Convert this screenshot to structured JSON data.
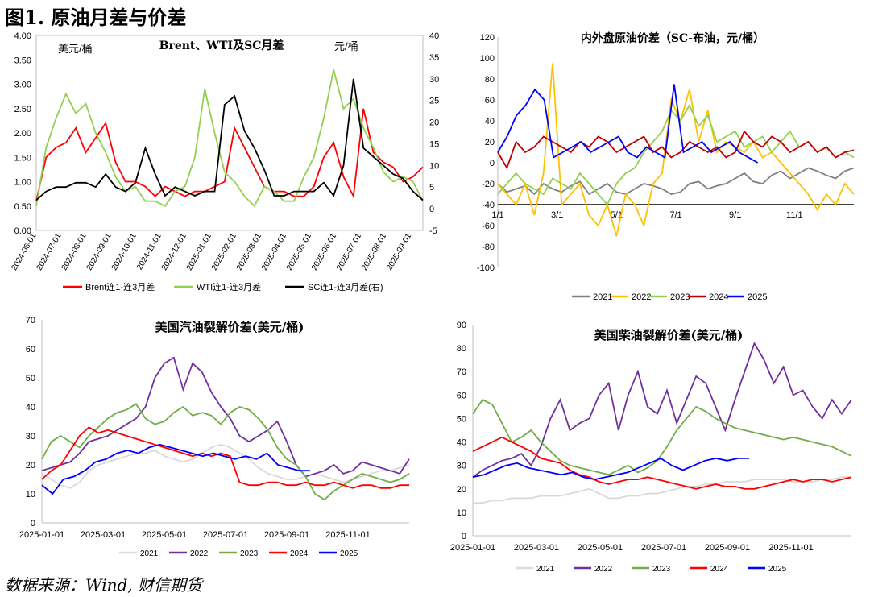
{
  "figure_title": "图1. 原油月差与价差",
  "source": "数据来源：Wind, 财信期货",
  "chart_data": [
    {
      "id": "spread",
      "type": "line",
      "title": "Brent、WTI及SC月差",
      "left_unit": "美元/桶",
      "right_unit": "元/桶",
      "ylim": [
        0,
        4
      ],
      "y_ticks": [
        "0.00",
        "0.50",
        "1.00",
        "1.50",
        "2.00",
        "2.50",
        "3.00",
        "3.50",
        "4.00"
      ],
      "y2lim": [
        -5,
        40
      ],
      "y2_ticks": [
        "-5",
        "0",
        "5",
        "10",
        "15",
        "20",
        "25",
        "30",
        "35",
        "40"
      ],
      "x_ticks": [
        "2024-06-01",
        "2024-07-01",
        "2024-08-01",
        "2024-09-01",
        "2024-10-01",
        "2024-11-01",
        "2024-12-01",
        "2025-01-01",
        "2025-02-01",
        "2025-03-01",
        "2025-04-01",
        "2025-05-01",
        "2025-06-01",
        "2025-07-01",
        "2025-08-01",
        "2025-09-01"
      ],
      "series": [
        {
          "name": "Brent连1-连3月差",
          "color": "#ff0000",
          "axis": "left",
          "values": [
            0.6,
            1.5,
            1.7,
            1.8,
            2.1,
            1.6,
            1.9,
            2.2,
            1.4,
            1.0,
            1.0,
            0.9,
            0.7,
            0.9,
            0.8,
            0.7,
            0.8,
            0.8,
            0.9,
            1.0,
            2.1,
            1.7,
            1.3,
            0.9,
            0.8,
            0.8,
            0.7,
            0.7,
            0.9,
            1.5,
            1.8,
            1.1,
            0.7,
            2.5,
            1.6,
            1.4,
            1.3,
            1.0,
            1.1,
            1.3
          ]
        },
        {
          "name": "WTI连1-连3月差",
          "color": "#92d050",
          "axis": "left",
          "values": [
            0.5,
            1.7,
            2.3,
            2.8,
            2.4,
            2.6,
            2.0,
            1.6,
            1.1,
            0.8,
            0.9,
            0.6,
            0.6,
            0.5,
            0.8,
            0.9,
            1.5,
            2.9,
            2.0,
            1.2,
            1.0,
            0.7,
            0.5,
            0.9,
            0.8,
            0.6,
            0.6,
            1.1,
            1.5,
            2.3,
            3.3,
            2.5,
            2.7,
            2.1,
            1.7,
            1.2,
            1.0,
            1.1,
            1.0,
            0.6
          ]
        },
        {
          "name": "SC连1-连3月差(右)",
          "color": "#000000",
          "axis": "right",
          "values": [
            2,
            4,
            5,
            5,
            6,
            6,
            5,
            8,
            5,
            4,
            6,
            14,
            8,
            3,
            5,
            4,
            3,
            4,
            4,
            24,
            26,
            18,
            14,
            9,
            3,
            3,
            4,
            4,
            4,
            6,
            3,
            10,
            30,
            14,
            12,
            10,
            8,
            7,
            4,
            2
          ]
        }
      ]
    },
    {
      "id": "sc_brent",
      "type": "line",
      "title": "内外盘原油价差（SC-布油，元/桶）",
      "ylim": [
        -100,
        120
      ],
      "y_ticks": [
        "-100",
        "-80",
        "-60",
        "-40",
        "-20",
        "0",
        "20",
        "40",
        "60",
        "80",
        "100",
        "120"
      ],
      "x_ticks": [
        "1/1",
        "3/1",
        "5/1",
        "7/1",
        "9/1",
        "11/1"
      ],
      "series": [
        {
          "name": "2021",
          "color": "#808080",
          "values": [
            -20,
            -28,
            -25,
            -22,
            -30,
            -20,
            -25,
            -28,
            -22,
            -18,
            -30,
            -25,
            -20,
            -28,
            -30,
            -25,
            -20,
            -22,
            -25,
            -30,
            -28,
            -20,
            -18,
            -25,
            -22,
            -20,
            -15,
            -10,
            -18,
            -20,
            -12,
            -8,
            -15,
            -10,
            -5,
            -8,
            -12,
            -15,
            -8,
            -5
          ]
        },
        {
          "name": "2022",
          "color": "#ffc000",
          "values": [
            -20,
            -30,
            -40,
            -20,
            -50,
            -10,
            95,
            -40,
            -30,
            -20,
            -50,
            -60,
            -40,
            -70,
            -30,
            -40,
            -60,
            -20,
            -10,
            60,
            40,
            70,
            20,
            50,
            10,
            20,
            15,
            10,
            20,
            5,
            10,
            0,
            -10,
            -20,
            -30,
            -45,
            -30,
            -40,
            -20,
            -30
          ]
        },
        {
          "name": "2023",
          "color": "#92d050",
          "values": [
            -30,
            -20,
            -10,
            -20,
            -25,
            -30,
            -15,
            -20,
            -25,
            -10,
            -20,
            -30,
            -40,
            -20,
            -10,
            -5,
            10,
            20,
            30,
            50,
            40,
            55,
            35,
            45,
            20,
            25,
            30,
            15,
            20,
            25,
            10,
            20,
            30,
            15,
            20,
            10,
            15,
            5,
            10,
            5
          ]
        },
        {
          "name": "2024",
          "color": "#c00000",
          "values": [
            10,
            -5,
            20,
            10,
            15,
            25,
            20,
            15,
            10,
            20,
            15,
            25,
            20,
            10,
            15,
            20,
            25,
            10,
            15,
            5,
            10,
            20,
            15,
            10,
            15,
            5,
            10,
            30,
            20,
            15,
            25,
            20,
            10,
            15,
            20,
            10,
            15,
            5,
            10,
            12
          ]
        },
        {
          "name": "2025",
          "color": "#0000ff",
          "values": [
            10,
            25,
            45,
            55,
            70,
            60,
            5,
            10,
            15,
            20,
            10,
            15,
            20,
            25,
            10,
            5,
            15,
            10,
            5,
            75,
            10,
            15,
            20,
            10,
            15,
            20,
            10,
            5,
            0
          ]
        }
      ]
    },
    {
      "id": "gasoline",
      "type": "line",
      "title": "美国汽油裂解价差(美元/桶)",
      "ylim": [
        0,
        70
      ],
      "y_ticks": [
        "0",
        "10",
        "20",
        "30",
        "40",
        "50",
        "60",
        "70"
      ],
      "x_ticks": [
        "2025-01-01",
        "2025-03-01",
        "2025-05-01",
        "2025-07-01",
        "2025-09-01",
        "2025-11-01"
      ],
      "series": [
        {
          "name": "2021",
          "color": "#d9d9d9",
          "values": [
            17,
            15,
            13,
            12,
            14,
            18,
            20,
            21,
            22,
            23,
            24,
            24,
            25,
            23,
            22,
            21,
            22,
            24,
            26,
            27,
            26,
            24,
            22,
            19,
            17,
            16,
            15,
            15,
            16,
            17,
            16,
            15,
            14,
            15,
            16,
            17,
            18,
            18,
            19,
            20
          ]
        },
        {
          "name": "2022",
          "color": "#7030a0",
          "values": [
            18,
            19,
            20,
            21,
            24,
            28,
            29,
            30,
            32,
            34,
            36,
            40,
            50,
            55,
            57,
            46,
            55,
            52,
            45,
            40,
            36,
            30,
            28,
            30,
            32,
            35,
            28,
            20,
            16,
            17,
            18,
            20,
            17,
            18,
            21,
            20,
            19,
            18,
            17,
            22
          ]
        },
        {
          "name": "2023",
          "color": "#70ad47",
          "values": [
            22,
            28,
            30,
            28,
            26,
            30,
            33,
            36,
            38,
            39,
            41,
            36,
            34,
            35,
            38,
            40,
            37,
            38,
            37,
            34,
            38,
            40,
            39,
            36,
            32,
            26,
            22,
            20,
            16,
            10,
            8,
            11,
            13,
            15,
            17,
            16,
            15,
            14,
            15,
            17
          ]
        },
        {
          "name": "2024",
          "color": "#ff0000",
          "values": [
            15,
            18,
            20,
            25,
            30,
            33,
            31,
            32,
            31,
            30,
            29,
            28,
            27,
            26,
            25,
            24,
            23,
            24,
            23,
            24,
            23,
            14,
            13,
            13,
            14,
            14,
            13,
            13,
            14,
            13,
            13,
            14,
            13,
            12,
            13,
            13,
            12,
            12,
            13,
            13
          ]
        },
        {
          "name": "2025",
          "color": "#0000ff",
          "values": [
            13,
            10,
            15,
            16,
            18,
            21,
            22,
            24,
            25,
            24,
            26,
            27,
            26,
            25,
            24,
            23,
            24,
            23,
            22,
            23,
            22,
            24,
            20,
            19,
            18,
            18
          ]
        }
      ]
    },
    {
      "id": "diesel",
      "type": "line",
      "title": "美国柴油裂解价差(美元/桶)",
      "ylim": [
        0,
        90
      ],
      "y_ticks": [
        "0",
        "10",
        "20",
        "30",
        "40",
        "50",
        "60",
        "70",
        "80",
        "90"
      ],
      "x_ticks": [
        "2025-01-01",
        "2025-03-01",
        "2025-05-01",
        "2025-07-01",
        "2025-09-01",
        "2025-11-01"
      ],
      "series": [
        {
          "name": "2021",
          "color": "#d9d9d9",
          "values": [
            14,
            14,
            15,
            15,
            16,
            16,
            16,
            17,
            17,
            17,
            18,
            19,
            20,
            18,
            16,
            16,
            17,
            17,
            18,
            18,
            19,
            20,
            21,
            21,
            22,
            22,
            23,
            23,
            23,
            24,
            24,
            24,
            24,
            23,
            23,
            23,
            24,
            24,
            25,
            25
          ]
        },
        {
          "name": "2022",
          "color": "#7030a0",
          "values": [
            25,
            28,
            30,
            32,
            33,
            35,
            30,
            38,
            50,
            58,
            45,
            48,
            50,
            60,
            65,
            45,
            60,
            70,
            55,
            52,
            62,
            48,
            58,
            68,
            65,
            55,
            45,
            58,
            70,
            82,
            75,
            65,
            72,
            60,
            62,
            55,
            50,
            58,
            52,
            58
          ]
        },
        {
          "name": "2023",
          "color": "#70ad47",
          "values": [
            52,
            58,
            56,
            48,
            40,
            42,
            45,
            40,
            36,
            32,
            30,
            29,
            28,
            27,
            26,
            28,
            30,
            27,
            29,
            32,
            38,
            45,
            50,
            55,
            53,
            50,
            48,
            46,
            45,
            44,
            43,
            42,
            41,
            42,
            41,
            40,
            39,
            38,
            36,
            34
          ]
        },
        {
          "name": "2024",
          "color": "#ff0000",
          "values": [
            36,
            38,
            40,
            42,
            40,
            38,
            36,
            33,
            32,
            31,
            28,
            26,
            25,
            23,
            22,
            23,
            24,
            24,
            25,
            24,
            23,
            22,
            21,
            20,
            21,
            22,
            21,
            21,
            20,
            20,
            21,
            22,
            23,
            24,
            23,
            24,
            24,
            23,
            24,
            25
          ]
        },
        {
          "name": "2025",
          "color": "#0000ff",
          "values": [
            25,
            26,
            28,
            30,
            31,
            29,
            28,
            27,
            26,
            27,
            25,
            24,
            25,
            26,
            27,
            29,
            31,
            33,
            30,
            28,
            30,
            32,
            33,
            32,
            33,
            33
          ]
        }
      ]
    }
  ]
}
